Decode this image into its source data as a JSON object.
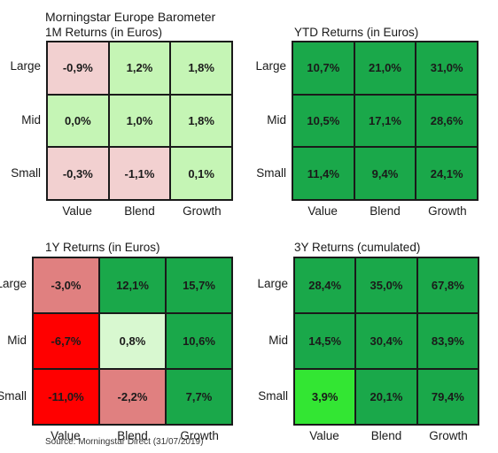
{
  "header": {
    "title": "Morningstar Europe Barometer",
    "source": "Source: Morningstar Direct (31/07/2019)"
  },
  "colors": {
    "light_pink": "#f2d0d0",
    "pale_green": "#c5f5b5",
    "medium_green": "#1aa84a",
    "bright_green": "#33e633",
    "salmon": "#e08080",
    "red": "#ff0000",
    "very_pale_green": "#d8f8d0"
  },
  "chart_data": [
    {
      "type": "table",
      "title": "1M Returns (in Euros)",
      "rows": [
        "Large",
        "Mid",
        "Small"
      ],
      "columns": [
        "Value",
        "Blend",
        "Growth"
      ],
      "values": [
        [
          "-0,9%",
          "1,2%",
          "1,8%"
        ],
        [
          "0,0%",
          "1,0%",
          "1,8%"
        ],
        [
          "-0,3%",
          "-1,1%",
          "0,1%"
        ]
      ],
      "cell_colors": [
        [
          "#f2d0d0",
          "#c5f5b5",
          "#c5f5b5"
        ],
        [
          "#c5f5b5",
          "#c5f5b5",
          "#c5f5b5"
        ],
        [
          "#f2d0d0",
          "#f2d0d0",
          "#c5f5b5"
        ]
      ]
    },
    {
      "type": "table",
      "title": "YTD Returns (in Euros)",
      "rows": [
        "Large",
        "Mid",
        "Small"
      ],
      "columns": [
        "Value",
        "Blend",
        "Growth"
      ],
      "values": [
        [
          "10,7%",
          "21,0%",
          "31,0%"
        ],
        [
          "10,5%",
          "17,1%",
          "28,6%"
        ],
        [
          "11,4%",
          "9,4%",
          "24,1%"
        ]
      ],
      "cell_colors": [
        [
          "#1aa84a",
          "#1aa84a",
          "#1aa84a"
        ],
        [
          "#1aa84a",
          "#1aa84a",
          "#1aa84a"
        ],
        [
          "#1aa84a",
          "#1aa84a",
          "#1aa84a"
        ]
      ]
    },
    {
      "type": "table",
      "title": "1Y Returns (in Euros)",
      "rows": [
        "Large",
        "Mid",
        "Small"
      ],
      "columns": [
        "Value",
        "Blend",
        "Growth"
      ],
      "values": [
        [
          "-3,0%",
          "12,1%",
          "15,7%"
        ],
        [
          "-6,7%",
          "0,8%",
          "10,6%"
        ],
        [
          "-11,0%",
          "-2,2%",
          "7,7%"
        ]
      ],
      "cell_colors": [
        [
          "#e08080",
          "#1aa84a",
          "#1aa84a"
        ],
        [
          "#ff0000",
          "#d8f8d0",
          "#1aa84a"
        ],
        [
          "#ff0000",
          "#e08080",
          "#1aa84a"
        ]
      ]
    },
    {
      "type": "table",
      "title": "3Y Returns (cumulated)",
      "rows": [
        "Large",
        "Mid",
        "Small"
      ],
      "columns": [
        "Value",
        "Blend",
        "Growth"
      ],
      "values": [
        [
          "28,4%",
          "35,0%",
          "67,8%"
        ],
        [
          "14,5%",
          "30,4%",
          "83,9%"
        ],
        [
          "3,9%",
          "20,1%",
          "79,4%"
        ]
      ],
      "cell_colors": [
        [
          "#1aa84a",
          "#1aa84a",
          "#1aa84a"
        ],
        [
          "#1aa84a",
          "#1aa84a",
          "#1aa84a"
        ],
        [
          "#33e633",
          "#1aa84a",
          "#1aa84a"
        ]
      ]
    }
  ]
}
